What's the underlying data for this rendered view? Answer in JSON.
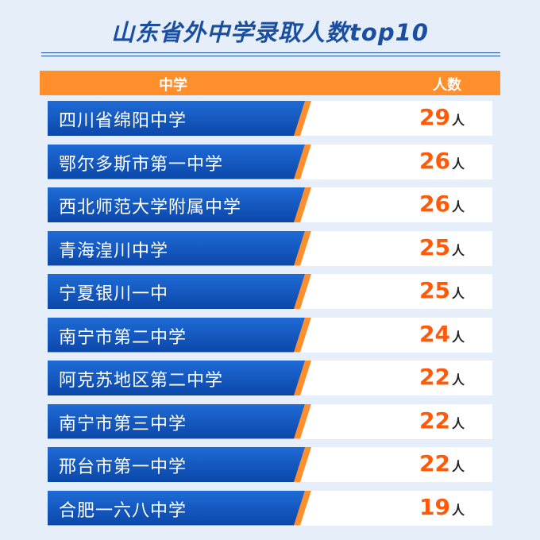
{
  "title": "山东省外中学录取人数top10",
  "header": {
    "school": "中学",
    "count": "人数"
  },
  "unit": "人",
  "chart_data": {
    "type": "table",
    "title": "山东省外中学录取人数top10",
    "columns": [
      "中学",
      "人数"
    ],
    "categories": [
      "四川省绵阳中学",
      "鄂尔多斯市第一中学",
      "西北师范大学附属中学",
      "青海湟川中学",
      "宁夏银川一中",
      "南宁市第二中学",
      "阿克苏地区第二中学",
      "南宁市第三中学",
      "邢台市第一中学",
      "合肥一六八中学"
    ],
    "values": [
      29,
      26,
      26,
      25,
      25,
      24,
      22,
      22,
      22,
      19
    ],
    "unit": "人"
  },
  "colors": {
    "accent": "#ff8e2c",
    "bar_blue": "#0b47a9",
    "count": "#ff5a0a",
    "title": "#1a4fa0",
    "background": "#e6eef9"
  }
}
